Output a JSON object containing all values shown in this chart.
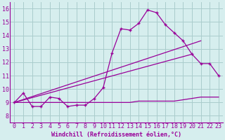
{
  "xlabel": "Windchill (Refroidissement éolien,°C)",
  "bg_color": "#d6eeee",
  "grid_color": "#aacccc",
  "line_color": "#990099",
  "spine_color": "#7700aa",
  "x_ticks": [
    0,
    1,
    2,
    3,
    4,
    5,
    6,
    7,
    8,
    9,
    10,
    11,
    12,
    13,
    14,
    15,
    16,
    17,
    18,
    19,
    20,
    21,
    22,
    23
  ],
  "y_ticks": [
    8,
    9,
    10,
    11,
    12,
    13,
    14,
    15,
    16
  ],
  "ylim": [
    7.5,
    16.5
  ],
  "xlim": [
    -0.5,
    23.5
  ],
  "series1_x": [
    0,
    1,
    2,
    3,
    4,
    5,
    6,
    7,
    8,
    9,
    10,
    11,
    12,
    13,
    14,
    15,
    16,
    17,
    18,
    19,
    20,
    21,
    22,
    23
  ],
  "series1_y": [
    9.0,
    9.7,
    8.7,
    8.7,
    9.4,
    9.3,
    8.7,
    8.8,
    8.8,
    9.3,
    10.1,
    12.7,
    14.5,
    14.4,
    14.9,
    15.9,
    15.7,
    14.8,
    14.2,
    13.6,
    12.6,
    11.9,
    11.9,
    11.0
  ],
  "series2_x": [
    0,
    1,
    2,
    3,
    4,
    5,
    6,
    7,
    8,
    9,
    10,
    11,
    12,
    13,
    14,
    15,
    16,
    17,
    18,
    19,
    20,
    21,
    22,
    23
  ],
  "series2_y": [
    9.0,
    9.0,
    9.0,
    9.0,
    9.0,
    9.0,
    9.0,
    9.0,
    9.0,
    9.0,
    9.0,
    9.0,
    9.0,
    9.0,
    9.1,
    9.1,
    9.1,
    9.1,
    9.1,
    9.2,
    9.3,
    9.4,
    9.4,
    9.4
  ],
  "series3_x": [
    0,
    21
  ],
  "series3_y": [
    9.0,
    13.6
  ],
  "series4_x": [
    0,
    20
  ],
  "series4_y": [
    9.0,
    12.6
  ],
  "tick_fontsize": 6,
  "xlabel_fontsize": 6
}
